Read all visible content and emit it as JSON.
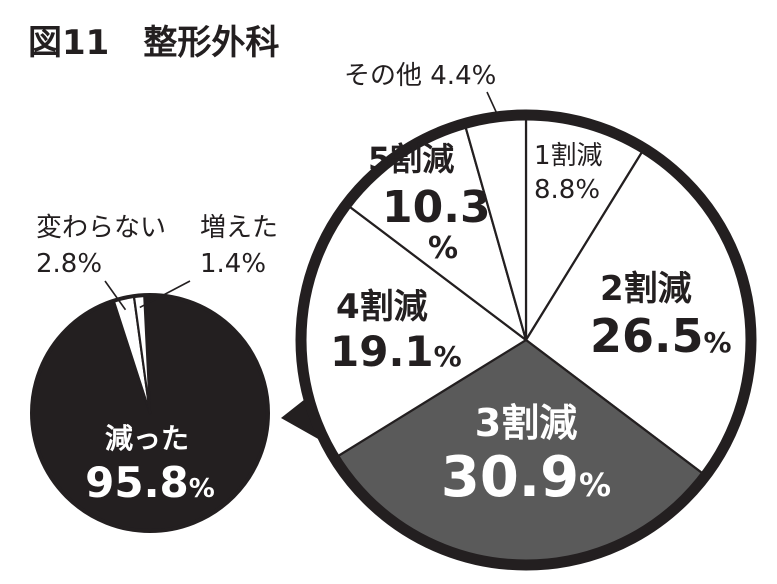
{
  "figure_title": "図11　整形外科",
  "colors": {
    "ink": "#231f20",
    "dark_fill": "#231f20",
    "mid_fill": "#5a5a5a",
    "light_fill": "#ffffff"
  },
  "chart_data": [
    {
      "type": "pie",
      "title": "",
      "slices": [
        {
          "label": "減った",
          "value": 95.8,
          "value_text": "95.8",
          "unit": "%",
          "color": "#231f20"
        },
        {
          "label": "変わらない",
          "value": 2.8,
          "value_text": "2.8",
          "unit": "%",
          "color": "#ffffff"
        },
        {
          "label": "増えた",
          "value": 1.4,
          "value_text": "1.4",
          "unit": "%",
          "color": "#ffffff"
        }
      ]
    },
    {
      "type": "pie",
      "title": "",
      "slices": [
        {
          "label": "1割減",
          "value": 8.8,
          "value_text": "8.8",
          "unit": "%",
          "color": "#ffffff"
        },
        {
          "label": "2割減",
          "value": 26.5,
          "value_text": "26.5",
          "unit": "%",
          "color": "#ffffff"
        },
        {
          "label": "3割減",
          "value": 30.9,
          "value_text": "30.9",
          "unit": "%",
          "color": "#5a5a5a"
        },
        {
          "label": "4割減",
          "value": 19.1,
          "value_text": "19.1",
          "unit": "%",
          "color": "#ffffff"
        },
        {
          "label": "5割減",
          "value": 10.3,
          "value_text": "10.3",
          "unit": "%",
          "color": "#ffffff"
        },
        {
          "label": "その他",
          "value": 4.4,
          "value_text": "4.4",
          "unit": "%",
          "color": "#ffffff"
        }
      ]
    }
  ]
}
